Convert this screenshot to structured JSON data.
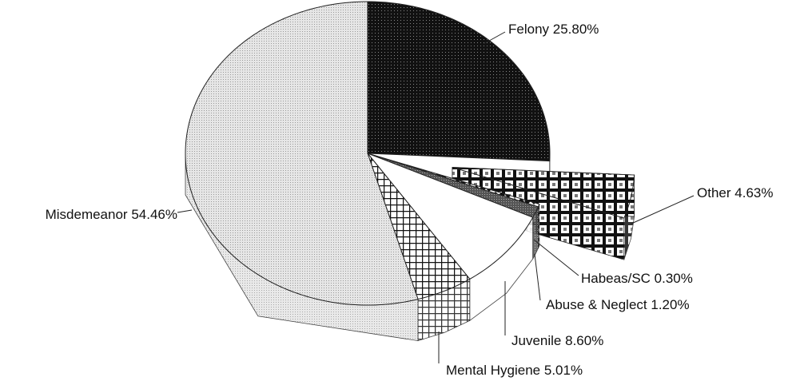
{
  "chart_data": {
    "type": "pie",
    "categories": [
      "Felony",
      "Other",
      "Habeas/SC",
      "Abuse & Neglect",
      "Juvenile",
      "Mental Hygiene",
      "Misdemeanor"
    ],
    "values": [
      25.8,
      4.63,
      0.3,
      1.2,
      8.6,
      5.01,
      54.46
    ],
    "value_labels": [
      "25.80%",
      "4.63%",
      "0.30%",
      "1.20%",
      "8.60%",
      "5.01%",
      "54.46%"
    ],
    "colors": [
      "#111111",
      "#ffffff",
      "#ffffff",
      "#666666",
      "#ffffff",
      "#ffffff",
      "#e4e4e4"
    ]
  }
}
